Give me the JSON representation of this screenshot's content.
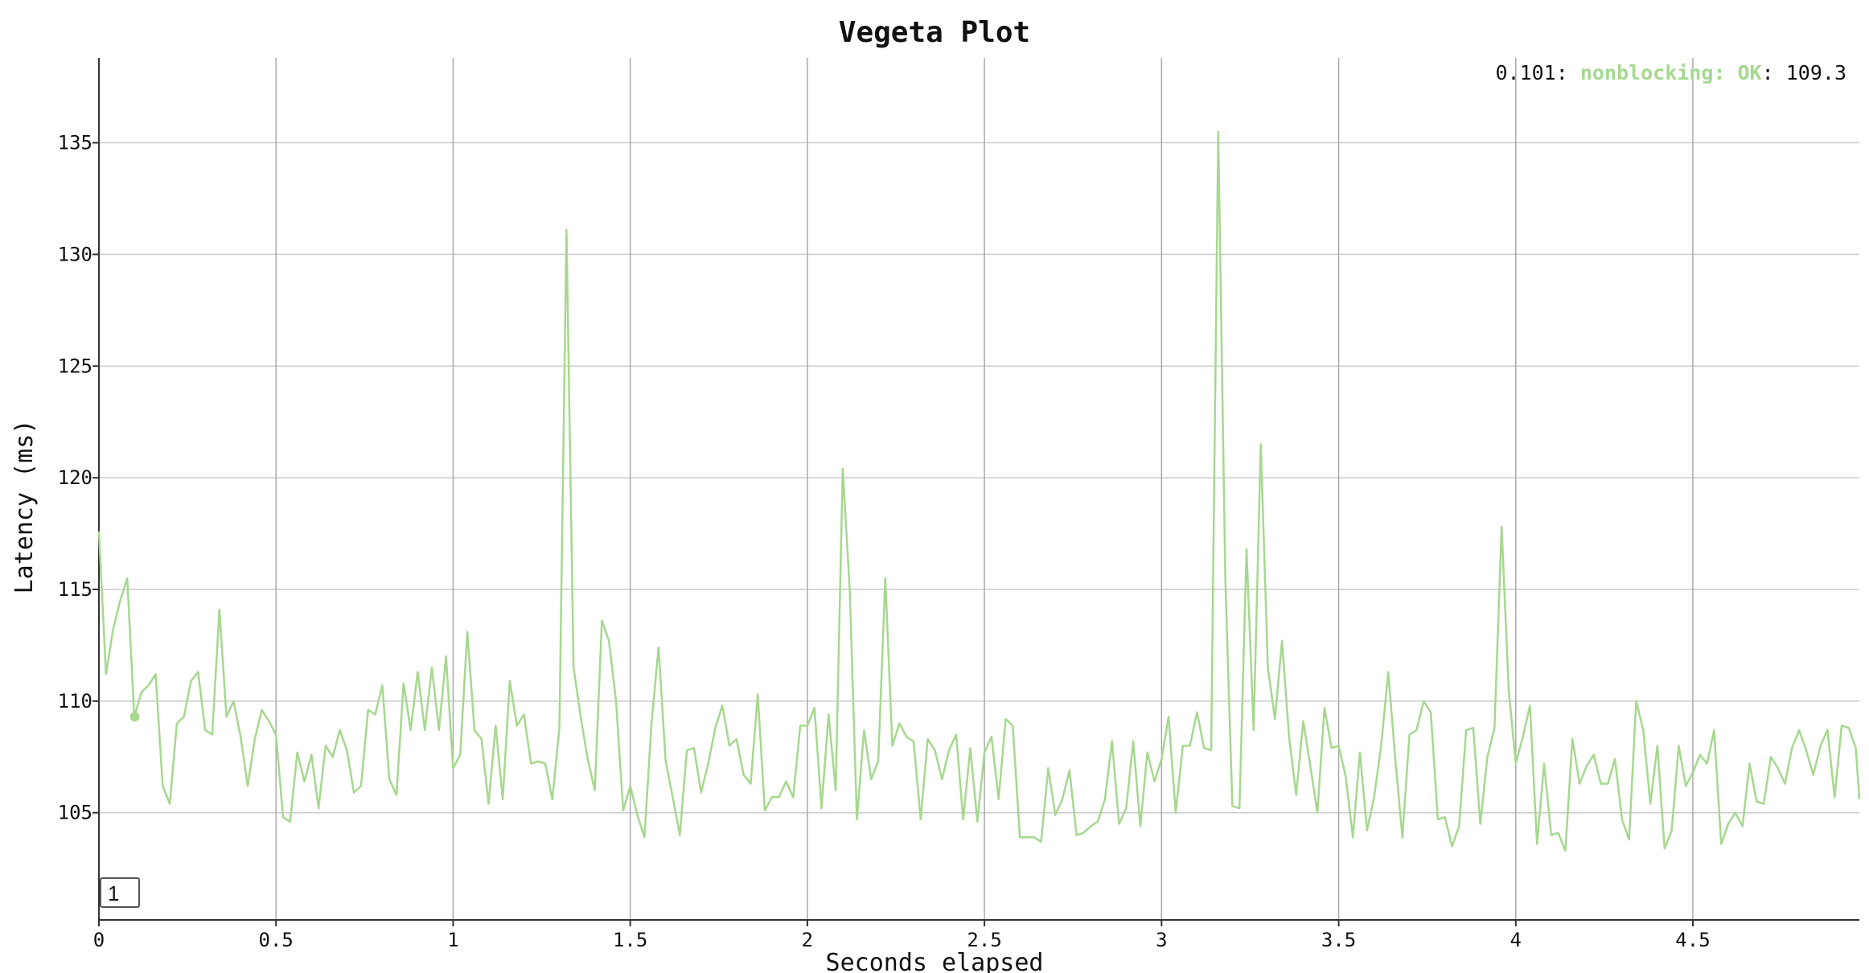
{
  "chart_data": {
    "type": "line",
    "title": "Vegeta Plot",
    "xlabel": "Seconds elapsed",
    "ylabel": "Latency (ms)",
    "xlim": [
      0,
      4.97
    ],
    "ylim": [
      100.2,
      138.8
    ],
    "x_ticks": [
      "0",
      "0.5",
      "1",
      "1.5",
      "2",
      "2.5",
      "3",
      "3.5",
      "4",
      "4.5"
    ],
    "y_ticks": [
      "105",
      "110",
      "115",
      "120",
      "125",
      "130",
      "135"
    ],
    "grid": true,
    "colors": {
      "series": "#a6d88f",
      "grid": "#cccccc",
      "axis": "#333333"
    },
    "legend": {
      "position": "top-right",
      "x_value": "0.101",
      "series_label": "nonblocking: OK",
      "y_value": "109.3"
    },
    "highlight_point": {
      "x": 0.101,
      "y": 109.3
    },
    "series": [
      {
        "name": "nonblocking: OK",
        "x_start": 0,
        "x_step": 0.02,
        "values": [
          117.6,
          111.2,
          113.2,
          114.5,
          115.5,
          109.3,
          110.4,
          110.7,
          111.2,
          106.2,
          105.4,
          109.0,
          109.3,
          110.9,
          111.3,
          108.7,
          108.5,
          114.1,
          109.3,
          110.0,
          108.4,
          106.2,
          108.3,
          109.6,
          109.1,
          108.5,
          104.8,
          104.6,
          107.7,
          106.4,
          107.6,
          105.2,
          108.0,
          107.5,
          108.7,
          107.8,
          105.9,
          106.2,
          109.6,
          109.4,
          110.7,
          106.5,
          105.8,
          110.8,
          108.7,
          111.3,
          108.7,
          111.5,
          108.7,
          112.0,
          107.0,
          107.6,
          113.1,
          108.7,
          108.3,
          105.4,
          108.9,
          105.6,
          110.9,
          108.9,
          109.4,
          107.2,
          107.3,
          107.2,
          105.6,
          108.8,
          131.1,
          111.5,
          109.3,
          107.4,
          106.0,
          113.6,
          112.7,
          110.0,
          105.1,
          106.2,
          104.9,
          103.9,
          109.0,
          112.4,
          107.3,
          105.7,
          104.0,
          107.8,
          107.9,
          105.9,
          107.2,
          108.8,
          109.8,
          108.0,
          108.3,
          106.7,
          106.3,
          110.3,
          105.1,
          105.7,
          105.7,
          106.4,
          105.7,
          108.9,
          108.9,
          109.7,
          105.2,
          109.4,
          106.0,
          120.4,
          114.9,
          104.7,
          108.7,
          106.5,
          107.3,
          115.5,
          108.0,
          109.0,
          108.4,
          108.2,
          104.7,
          108.3,
          107.8,
          106.5,
          107.8,
          108.5,
          104.7,
          107.9,
          104.6,
          107.7,
          108.4,
          105.6,
          109.2,
          108.9,
          103.9,
          103.9,
          103.9,
          103.7,
          107.0,
          104.9,
          105.6,
          106.9,
          104.0,
          104.1,
          104.4,
          104.6,
          105.6,
          108.2,
          104.5,
          105.2,
          108.2,
          104.4,
          107.7,
          106.4,
          107.4,
          109.3,
          105.0,
          108.0,
          108.0,
          109.5,
          107.9,
          107.8,
          135.5,
          115.5,
          105.3,
          105.2,
          116.8,
          108.7,
          121.5,
          111.5,
          109.2,
          112.7,
          108.4,
          105.8,
          109.1,
          107.1,
          105.0,
          109.7,
          107.9,
          108.0,
          106.6,
          103.9,
          107.7,
          104.2,
          105.7,
          108.0,
          111.3,
          107.4,
          103.9,
          108.5,
          108.7,
          110.0,
          109.5,
          104.7,
          104.8,
          103.5,
          104.4,
          108.7,
          108.8,
          104.5,
          107.5,
          108.8,
          117.8,
          110.5,
          107.2,
          108.4,
          109.8,
          103.6,
          107.2,
          104.0,
          104.1,
          103.3,
          108.3,
          106.3,
          107.1,
          107.6,
          106.3,
          106.3,
          107.4,
          104.7,
          103.8,
          110.0,
          108.7,
          105.4,
          108.0,
          103.4,
          104.2,
          108.0,
          106.2,
          106.8,
          107.6,
          107.2,
          108.7,
          103.6,
          104.5,
          105.0,
          104.4,
          107.2,
          105.5,
          105.4,
          107.5,
          107.0,
          106.3,
          107.9,
          108.7,
          107.8,
          106.7,
          108.0,
          108.7,
          105.7,
          108.9,
          108.8,
          107.9,
          105.6
        ]
      }
    ]
  }
}
